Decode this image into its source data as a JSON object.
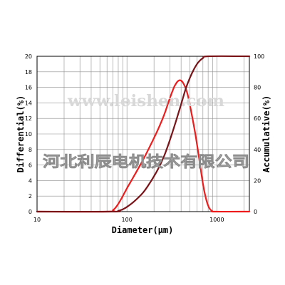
{
  "chart_data": {
    "type": "line",
    "xlabel": "Diameter(μm)",
    "ylabel_left": "Differential(%)",
    "ylabel_right": "Accumulative(%)",
    "x_scale": "log",
    "xlim": [
      10,
      2300
    ],
    "ylim_left": [
      0,
      20
    ],
    "ylim_right": [
      0,
      100
    ],
    "x_ticks": [
      {
        "value": 10,
        "label": "10"
      },
      {
        "value": 100,
        "label": "100"
      },
      {
        "value": 1000,
        "label": "1000"
      }
    ],
    "y_ticks_left": [
      {
        "value": 0,
        "label": "0"
      },
      {
        "value": 2,
        "label": "2"
      },
      {
        "value": 4,
        "label": "4"
      },
      {
        "value": 6,
        "label": "6"
      },
      {
        "value": 8,
        "label": "8"
      },
      {
        "value": 10,
        "label": "10"
      },
      {
        "value": 12,
        "label": "12"
      },
      {
        "value": 14,
        "label": "14"
      },
      {
        "value": 16,
        "label": "16"
      },
      {
        "value": 18,
        "label": "18"
      },
      {
        "value": 20,
        "label": "20"
      }
    ],
    "y_ticks_right": [
      {
        "value": 0,
        "label": "0"
      },
      {
        "value": 20,
        "label": "20"
      },
      {
        "value": 40,
        "label": "40"
      },
      {
        "value": 60,
        "label": "60"
      },
      {
        "value": 80,
        "label": "80"
      },
      {
        "value": 100,
        "label": "100"
      }
    ],
    "grid": true,
    "series": [
      {
        "axis": "left",
        "color": "#ee1c1c",
        "points": [
          [
            10,
            0
          ],
          [
            60,
            0
          ],
          [
            70,
            0.2
          ],
          [
            78,
            0.8
          ],
          [
            88,
            1.8
          ],
          [
            100,
            3.0
          ],
          [
            120,
            4.6
          ],
          [
            150,
            6.6
          ],
          [
            180,
            8.4
          ],
          [
            220,
            10.5
          ],
          [
            260,
            12.5
          ],
          [
            300,
            14.6
          ],
          [
            340,
            16.2
          ],
          [
            380,
            16.9
          ],
          [
            420,
            16.6
          ],
          [
            470,
            15.2
          ],
          [
            520,
            12.8
          ],
          [
            580,
            9.8
          ],
          [
            640,
            6.6
          ],
          [
            700,
            3.6
          ],
          [
            760,
            1.6
          ],
          [
            820,
            0.5
          ],
          [
            880,
            0.1
          ],
          [
            950,
            0
          ],
          [
            2300,
            0
          ]
        ]
      },
      {
        "axis": "right",
        "color": "#7a1419",
        "points": [
          [
            10,
            0
          ],
          [
            70,
            0
          ],
          [
            80,
            0.5
          ],
          [
            90,
            1.5
          ],
          [
            100,
            3
          ],
          [
            120,
            6.5
          ],
          [
            150,
            12
          ],
          [
            180,
            18.5
          ],
          [
            220,
            27
          ],
          [
            260,
            36
          ],
          [
            300,
            46
          ],
          [
            350,
            58
          ],
          [
            400,
            69
          ],
          [
            450,
            79
          ],
          [
            500,
            86
          ],
          [
            560,
            92
          ],
          [
            620,
            96
          ],
          [
            700,
            98.8
          ],
          [
            800,
            100
          ],
          [
            2300,
            100
          ]
        ]
      }
    ]
  },
  "watermark": {
    "latin": "www.leishen.com",
    "cjk": "河北利辰电机技术有限公司"
  }
}
